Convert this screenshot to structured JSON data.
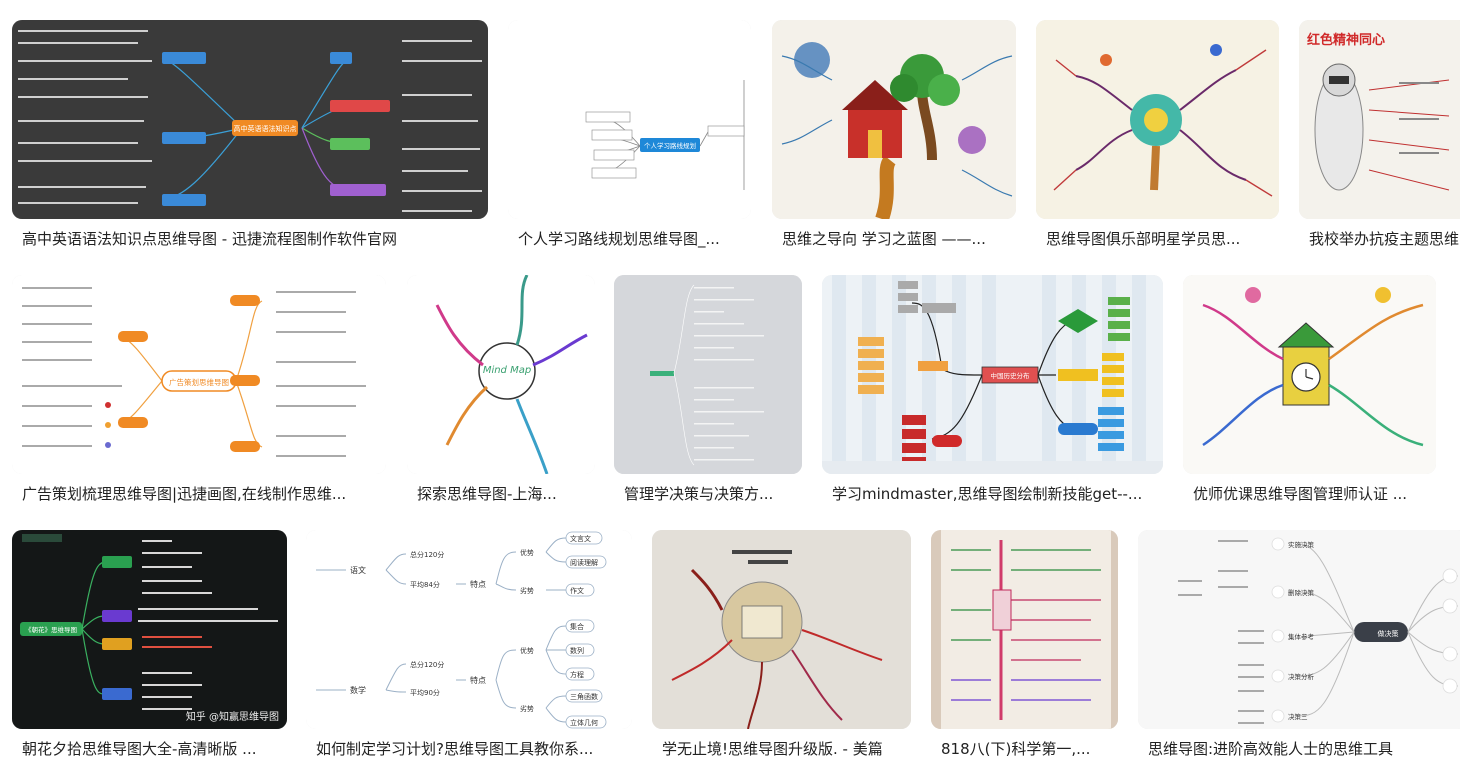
{
  "results": [
    {
      "caption": "高中英语语法知识点思维导图 - 迅捷流程图制作软件官网",
      "center": "高中英语语法知识点",
      "branches": [
        "主语",
        "谓语",
        "宾语",
        "表语"
      ]
    },
    {
      "caption": "个人学习路线规划思维导图_...",
      "center": "个人学习路线规划",
      "branches": [
        "学习计划",
        "时间安排",
        "目标",
        "方法"
      ]
    },
    {
      "caption": "思维之导向 学习之蓝图 ——..."
    },
    {
      "caption": "思维导图俱乐部明星学员思..."
    },
    {
      "caption": "我校举办抗疫主题思维",
      "title": "红色精神同心"
    },
    {
      "caption": "广告策划梳理思维导图|迅捷画图,在线制作思维...",
      "center": "广告策划思维导图"
    },
    {
      "caption": "探索思维导图-上海...",
      "center": "Mind Map"
    },
    {
      "caption": "管理学决策与决策方..."
    },
    {
      "caption": "学习mindmaster,思维导图绘制新技能get--...",
      "center": "中国历史分布"
    },
    {
      "caption": "优师优课思维导图管理师认证 ..."
    },
    {
      "caption": "朝花夕拾思维导图大全-高清晰版 ...",
      "center": "《朝花》思维导图",
      "branches": [
        "作者介绍",
        "创作背景",
        "中心主题",
        "主要内容"
      ],
      "watermark": "知乎 @知赢思维导图"
    },
    {
      "caption": "如何制定学习计划?思维导图工具教你系...",
      "center": "",
      "branches": [
        "语文",
        "数学",
        "特点",
        "优势",
        "劣势",
        "文言文",
        "阅读理解",
        "作文",
        "集合",
        "数列",
        "方程",
        "三角函数",
        "立体几何"
      ],
      "sub": [
        "总分120分",
        "平均84分",
        "总分120分",
        "平均90分"
      ]
    },
    {
      "caption": "学无止境!思维导图升级版. - 美篇"
    },
    {
      "caption": "818八(下)科学第一,..."
    },
    {
      "caption": "思维导图:进阶高效能人士的思维工具",
      "center": "做决策",
      "branches": [
        "实施决策",
        "删除决策",
        "集体参考",
        "决策分析",
        "决策三"
      ]
    }
  ]
}
